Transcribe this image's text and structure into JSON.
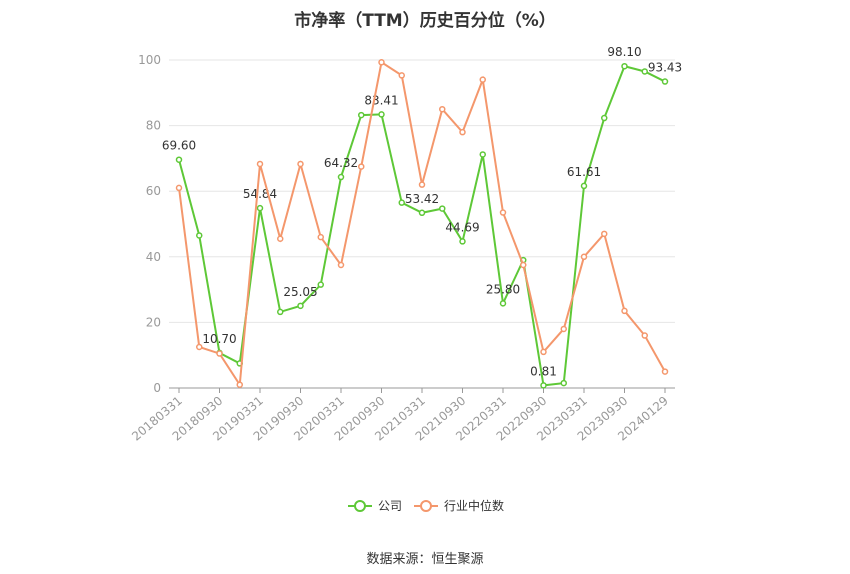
{
  "chart_data": {
    "type": "line",
    "title": "市净率（TTM）历史百分位（%）",
    "ylim": [
      0,
      100
    ],
    "yticks": [
      0,
      20,
      40,
      60,
      80,
      100
    ],
    "grid": true,
    "legend_position": "bottom",
    "x": [
      "20180331",
      "20180630",
      "20180930",
      "20181231",
      "20190331",
      "20190630",
      "20190930",
      "20191231",
      "20200331",
      "20200630",
      "20200930",
      "20201231",
      "20210331",
      "20210630",
      "20210930",
      "20211231",
      "20220331",
      "20220630",
      "20220930",
      "20221231",
      "20230331",
      "20230630",
      "20230930",
      "20231231",
      "20240129"
    ],
    "x_tick_labels": [
      "20180331",
      "20180930",
      "20190331",
      "20190930",
      "20200331",
      "20200930",
      "20210331",
      "20210930",
      "20220331",
      "20220930",
      "20230331",
      "20230930",
      "20240129"
    ],
    "series": [
      {
        "name": "公司",
        "color": "#5ec837",
        "values": [
          69.6,
          46.5,
          10.7,
          7.5,
          54.84,
          23.2,
          25.05,
          31.5,
          64.32,
          83.2,
          83.41,
          56.5,
          53.42,
          54.7,
          44.69,
          71.2,
          25.8,
          39.0,
          0.81,
          1.5,
          61.61,
          82.3,
          98.1,
          96.5,
          93.43
        ],
        "labels": {
          "0": "69.60",
          "2": "10.70",
          "4": "54.84",
          "6": "25.05",
          "8": "64.32",
          "10": "83.41",
          "12": "53.42",
          "14": "44.69",
          "16": "25.80",
          "18": "0.81",
          "20": "61.61",
          "22": "98.10",
          "24": "93.43"
        }
      },
      {
        "name": "行业中位数",
        "color": "#f4976c",
        "values": [
          61.0,
          12.5,
          10.5,
          1.0,
          68.3,
          45.5,
          68.3,
          46.0,
          37.5,
          67.5,
          99.3,
          95.3,
          62.0,
          85.0,
          78.0,
          94.0,
          53.5,
          37.5,
          11.0,
          18.0,
          40.0,
          47.0,
          23.5,
          16.0,
          5.0
        ]
      }
    ]
  },
  "source_text": "数据来源：恒生聚源"
}
